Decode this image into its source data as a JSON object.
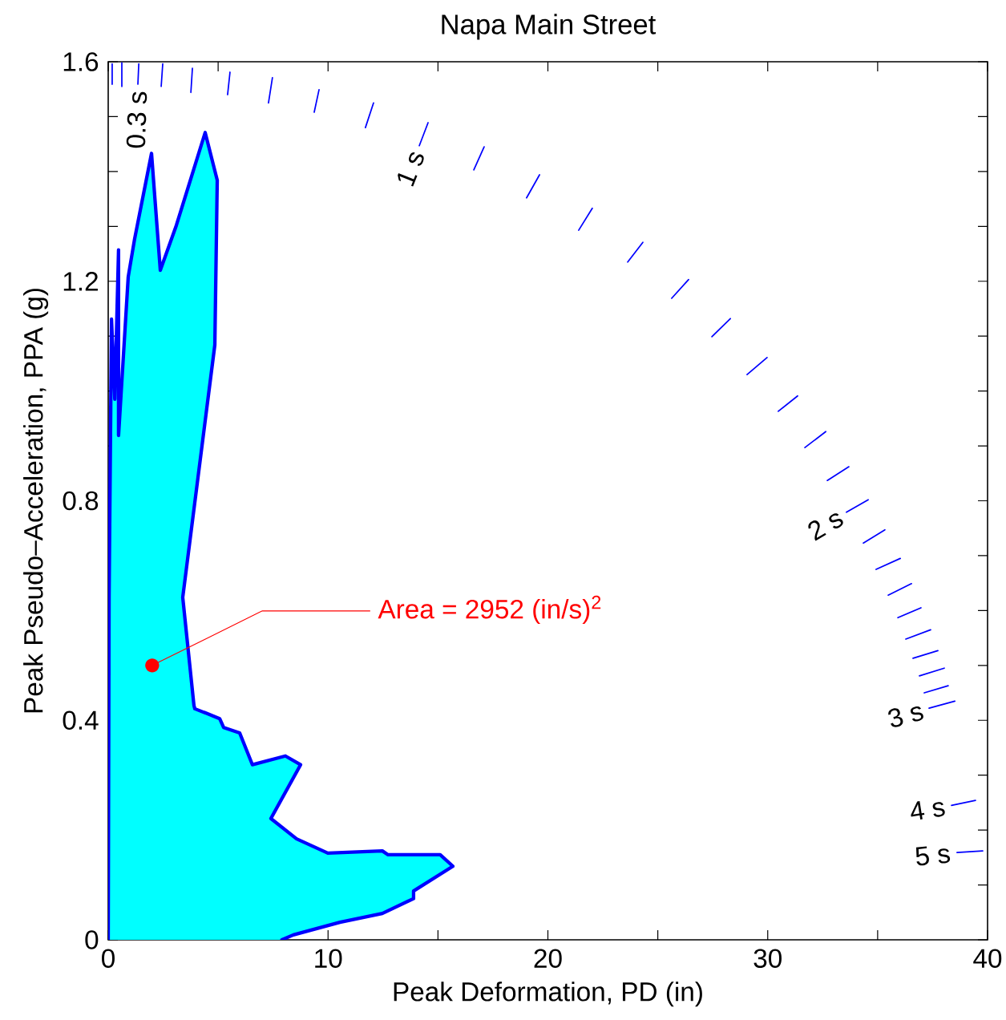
{
  "chart_data": {
    "type": "area",
    "title": "Napa Main Street",
    "xlabel": "Peak Deformation, PD (in)",
    "ylabel": "Peak Pseudo–Acceleration, PPA (g)",
    "xlim": [
      0,
      40
    ],
    "ylim": [
      0,
      1.6
    ],
    "xticks": [
      0,
      {
        "value": 5,
        "label": null
      },
      10,
      {
        "value": 15,
        "label": null
      },
      20,
      {
        "value": 25,
        "label": null
      },
      30,
      {
        "value": 35,
        "label": null
      },
      40
    ],
    "yticks": [
      0,
      {
        "value": 0.1,
        "label": null
      },
      {
        "value": 0.2,
        "label": null
      },
      {
        "value": 0.3,
        "label": null
      },
      0.4,
      {
        "value": 0.5,
        "label": null
      },
      {
        "value": 0.6,
        "label": null
      },
      {
        "value": 0.7,
        "label": null
      },
      0.8,
      {
        "value": 0.9,
        "label": null
      },
      {
        "value": 1.0,
        "label": null
      },
      {
        "value": 1.1,
        "label": null
      },
      1.2,
      {
        "value": 1.3,
        "label": null
      },
      {
        "value": 1.4,
        "label": null
      },
      {
        "value": 1.5,
        "label": null
      },
      1.6
    ],
    "series": [
      {
        "color": "#00ffff",
        "x": [
          0,
          0.04,
          0.15,
          0.3,
          0.47,
          0.47,
          0.91,
          1.2,
          1.97,
          2.37,
          3.1,
          4.41,
          4.96,
          4.85,
          3.39,
          3.9,
          3.94,
          4.45,
          5.07,
          5.25,
          5.98,
          6.56,
          8.06,
          8.75,
          7.4,
          8.57,
          9.99,
          12.47,
          12.73,
          15.1,
          15.68,
          13.89,
          13.89,
          12.47,
          10.54,
          8.42,
          7.9
        ],
        "values": [
          0,
          0.624,
          1.131,
          0.985,
          1.257,
          0.919,
          1.208,
          1.277,
          1.433,
          1.22,
          1.302,
          1.471,
          1.384,
          1.084,
          0.624,
          0.427,
          0.421,
          0.413,
          0.403,
          0.387,
          0.377,
          0.319,
          0.335,
          0.319,
          0.221,
          0.184,
          0.158,
          0.162,
          0.155,
          0.155,
          0.134,
          0.089,
          0.075,
          0.048,
          0.032,
          0.009,
          0
        ]
      },
      {
        "type": "line",
        "color": "#0000ff",
        "x": [
          0.18,
          0.18,
          null,
          0.62,
          0.62,
          null,
          1.39,
          1.35,
          null,
          2.48,
          2.41,
          null,
          3.83,
          3.76,
          null,
          5.54,
          5.43,
          null,
          7.47,
          7.29,
          null,
          9.59,
          9.37,
          null,
          12.07,
          11.7,
          null,
          14.55,
          14.15,
          null,
          17.1,
          16.63,
          null,
          19.62,
          19.03,
          null,
          22.02,
          21.4,
          null,
          24.32,
          23.63,
          null,
          26.4,
          25.63,
          null,
          28.3,
          27.46,
          null,
          29.97,
          29.06,
          null,
          31.36,
          30.48,
          null,
          32.64,
          31.69,
          null,
          33.69,
          32.71,
          null,
          34.57,
          33.58,
          null,
          35.33,
          34.35,
          null,
          36.03,
          34.93,
          null,
          36.54,
          35.48,
          null,
          36.97,
          35.92,
          null,
          37.41,
          36.28,
          null,
          37.74,
          36.61,
          null,
          38.03,
          36.9,
          null,
          38.21,
          37.12,
          null,
          38.51,
          37.34,
          null,
          39.45,
          38.36,
          null,
          39.78,
          38.61
        ],
        "values": [
          1.596,
          1.559,
          null,
          1.598,
          1.555,
          null,
          1.596,
          1.559,
          null,
          1.596,
          1.555,
          null,
          1.588,
          1.544,
          null,
          1.581,
          1.54,
          null,
          1.571,
          1.525,
          null,
          1.549,
          1.508,
          null,
          1.525,
          1.48,
          null,
          1.489,
          1.447,
          null,
          1.445,
          1.403,
          null,
          1.394,
          1.352,
          null,
          1.333,
          1.293,
          null,
          1.271,
          1.235,
          null,
          1.203,
          1.169,
          null,
          1.132,
          1.099,
          null,
          1.061,
          1.03,
          null,
          0.991,
          0.963,
          null,
          0.926,
          0.897,
          null,
          0.862,
          0.837,
          null,
          0.802,
          0.779,
          null,
          0.747,
          0.723,
          null,
          0.695,
          0.675,
          null,
          0.649,
          0.628,
          null,
          0.605,
          0.587,
          null,
          0.565,
          0.548,
          null,
          0.527,
          0.513,
          null,
          0.495,
          0.481,
          null,
          0.463,
          0.45,
          null,
          0.435,
          0.422,
          null,
          0.254,
          0.245,
          null,
          0.162,
          0.159
        ]
      }
    ],
    "annotations": [
      "0.3 s",
      "1 s",
      "2 s",
      "3 s",
      "4 s",
      "5 s",
      {
        "text": "Area = 2952 (in/s)$^{2}$",
        "x": 2.0,
        "y": 0.5
      }
    ]
  }
}
